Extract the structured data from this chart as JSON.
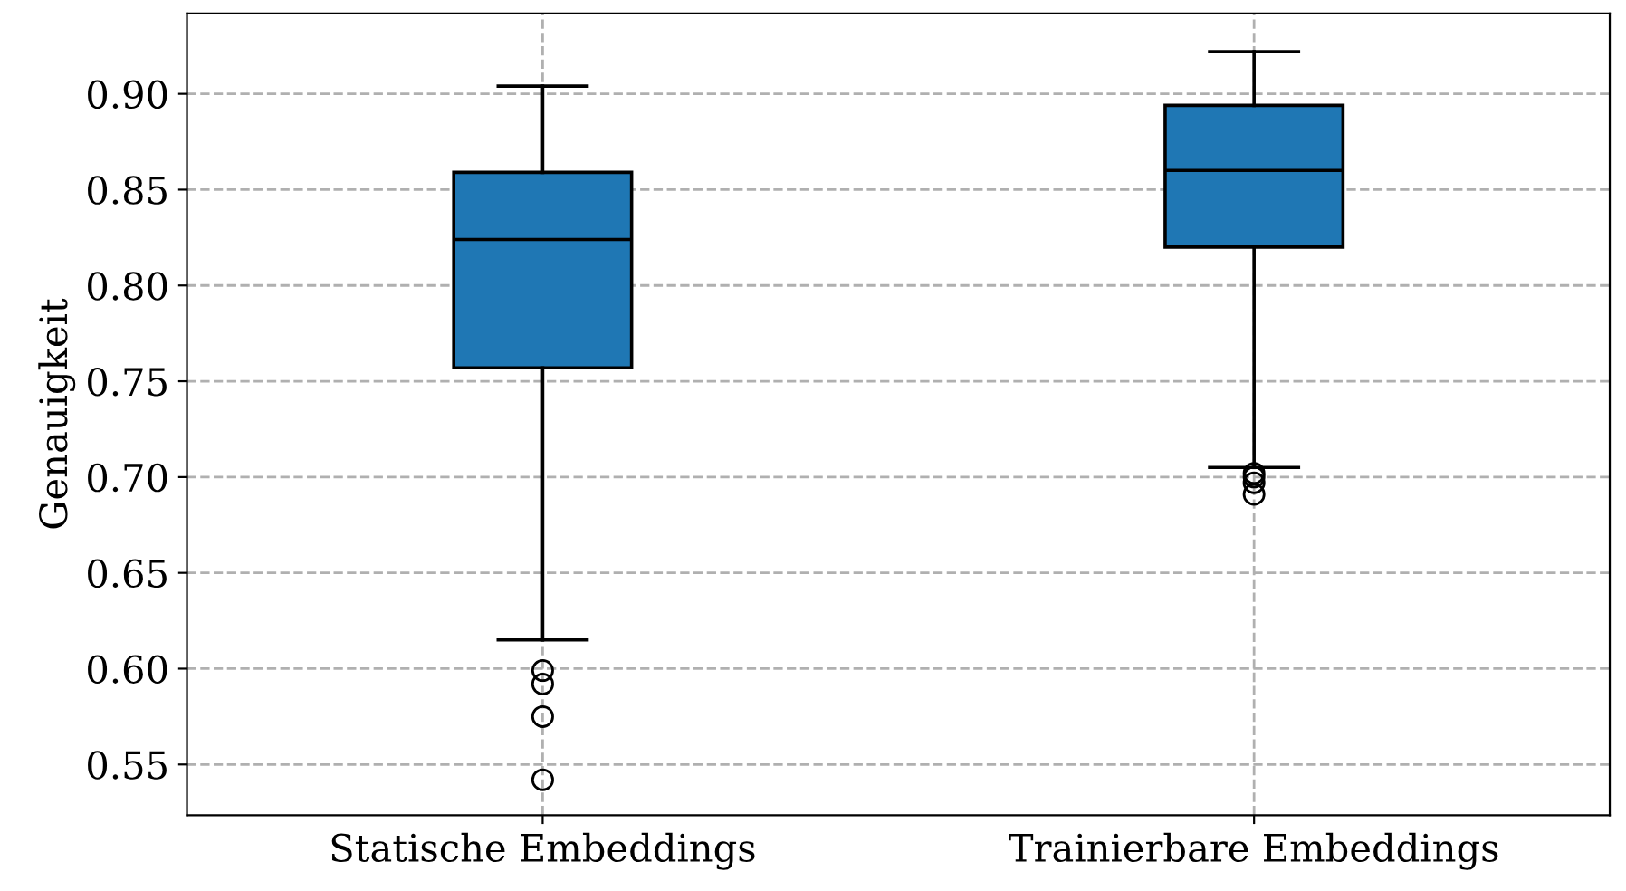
{
  "chart_data": {
    "type": "box",
    "ylabel": "Genauigkeit",
    "categories": [
      "Statische Embeddings",
      "Trainierbare Embeddings"
    ],
    "boxes": [
      {
        "low": 0.615,
        "q1": 0.757,
        "median": 0.824,
        "q3": 0.859,
        "high": 0.904,
        "outliers": [
          0.599,
          0.592,
          0.575,
          0.542
        ]
      },
      {
        "low": 0.705,
        "q1": 0.82,
        "median": 0.86,
        "q3": 0.894,
        "high": 0.922,
        "outliers": [
          0.702,
          0.7,
          0.697,
          0.691
        ]
      }
    ],
    "color": "#1f77b4",
    "ylim": [
      0.5235,
      0.942
    ],
    "yticks": [
      0.55,
      {
        "value": 0.6,
        "label": "0.60"
      },
      0.65,
      {
        "value": 0.7,
        "label": "0.70"
      },
      0.75,
      {
        "value": 0.8,
        "label": "0.80"
      },
      0.85,
      {
        "value": 0.9,
        "label": "0.90"
      }
    ],
    "grid": true
  }
}
